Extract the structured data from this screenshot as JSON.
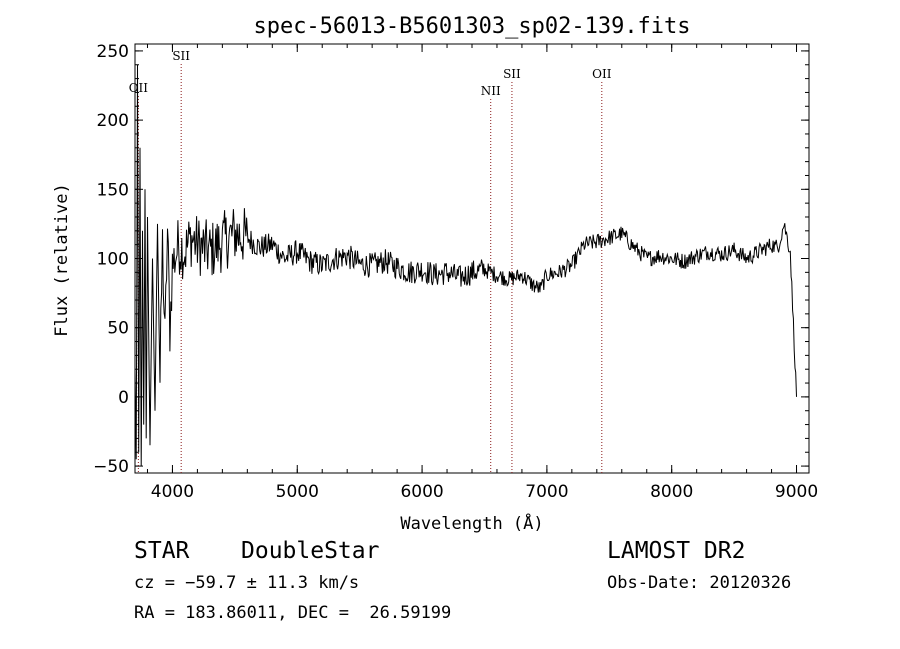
{
  "chart_data": {
    "type": "line",
    "title": "spec-56013-B5601303_sp02-139.fits",
    "xlabel": "Wavelength (Å)",
    "ylabel": "Flux (relative)",
    "xlim": [
      3700,
      9100
    ],
    "ylim": [
      -55,
      255
    ],
    "xticks": [
      "4000",
      "5000",
      "6000",
      "7000",
      "8000",
      "9000"
    ],
    "yticks": [
      "−50",
      "0",
      "50",
      "100",
      "150",
      "200",
      "250"
    ],
    "line_color": "#000000",
    "marker_color": "#8b1a1a",
    "lines": [
      {
        "label": "OII",
        "wavelength": 3727
      },
      {
        "label": "SII",
        "wavelength": 4070
      },
      {
        "label": "NII",
        "wavelength": 6550
      },
      {
        "label": "SII",
        "wavelength": 6720
      },
      {
        "label": "OII",
        "wavelength": 7440
      }
    ],
    "series": [
      {
        "x": [
          3700,
          3710,
          3720,
          3730,
          3740,
          3750,
          3760,
          3770,
          3780,
          3790,
          3800,
          3820,
          3840,
          3860,
          3880,
          3900,
          3920,
          3940,
          3960,
          3980,
          4000,
          4050,
          4100,
          4150,
          4200,
          4300,
          4400,
          4500,
          4600,
          4700,
          4800,
          4900,
          5000,
          5100,
          5200,
          5300,
          5400,
          5500,
          5600,
          5700,
          5800,
          5900,
          6000,
          6100,
          6200,
          6300,
          6400,
          6500,
          6600,
          6700,
          6800,
          6900,
          6950,
          7000,
          7100,
          7200,
          7300,
          7400,
          7500,
          7600,
          7700,
          7800,
          7900,
          8000,
          8100,
          8200,
          8300,
          8400,
          8500,
          8600,
          8700,
          8800,
          8850,
          8900,
          8950,
          9000
        ],
        "y": [
          20,
          -45,
          240,
          -40,
          180,
          -50,
          120,
          -20,
          150,
          -30,
          130,
          -35,
          100,
          -10,
          125,
          10,
          110,
          40,
          120,
          50,
          95,
          110,
          105,
          115,
          110,
          105,
          112,
          118,
          115,
          108,
          110,
          100,
          105,
          98,
          95,
          100,
          102,
          96,
          95,
          98,
          94,
          90,
          92,
          88,
          90,
          86,
          90,
          92,
          88,
          85,
          88,
          80,
          78,
          88,
          90,
          95,
          110,
          112,
          115,
          118,
          108,
          100,
          102,
          100,
          98,
          102,
          105,
          103,
          106,
          100,
          105,
          110,
          108,
          125,
          105,
          0
        ]
      }
    ]
  },
  "footer": {
    "class_label": "STAR",
    "subclass_label": "DoubleStar",
    "survey_label": "LAMOST DR2",
    "cz_text": "cz = −59.7 ± 11.3 km/s",
    "obs_date_text": "Obs-Date: 20120326",
    "coords_text": "RA = 183.86011, DEC =  26.59199"
  }
}
